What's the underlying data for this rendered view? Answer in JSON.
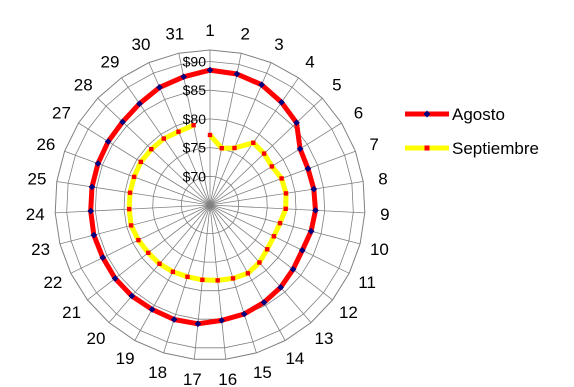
{
  "chart_data": {
    "type": "radar",
    "title": "",
    "categories": [
      "1",
      "2",
      "3",
      "4",
      "5",
      "6",
      "7",
      "8",
      "9",
      "10",
      "11",
      "12",
      "13",
      "14",
      "15",
      "16",
      "17",
      "18",
      "19",
      "20",
      "21",
      "22",
      "23",
      "24",
      "25",
      "26",
      "27",
      "28",
      "29",
      "30",
      "31"
    ],
    "axis": {
      "min": 65,
      "max": 92,
      "ticks": [
        70,
        75,
        80,
        85,
        90
      ],
      "tick_labels": [
        "$70",
        "$75",
        "$80",
        "$85",
        "$90"
      ],
      "grid": true
    },
    "series": [
      {
        "name": "Agosto",
        "color": "#ff0000",
        "marker_color": "#000080",
        "marker": "diamond",
        "values": [
          88.5,
          88.3,
          87.8,
          86.8,
          85.8,
          83.5,
          83.2,
          83.3,
          83.4,
          83.2,
          82.9,
          83.3,
          83.9,
          84.4,
          84.9,
          85.2,
          85.8,
          85.9,
          85.8,
          85.9,
          85.9,
          85.8,
          85.9,
          85.8,
          85.8,
          85.8,
          85.9,
          86.0,
          86.5,
          87.3,
          87.8
        ]
      },
      {
        "name": "Septiembre",
        "color": "#ffff00",
        "marker_color": "#ff0000",
        "marker": "square",
        "values": [
          77.2,
          75.1,
          75.8,
          78.2,
          78.0,
          77.7,
          78.3,
          78.4,
          78.2,
          77.6,
          77.4,
          77.6,
          78.2,
          78.6,
          78.4,
          78.2,
          78.1,
          78.1,
          78.3,
          78.5,
          78.6,
          78.9,
          79.2,
          79.1,
          79.1,
          79.1,
          79.2,
          79.1,
          79.1,
          78.9,
          79.2
        ]
      }
    ],
    "legend": {
      "position": "right",
      "entries": [
        "Agosto",
        "Septiembre"
      ]
    }
  }
}
